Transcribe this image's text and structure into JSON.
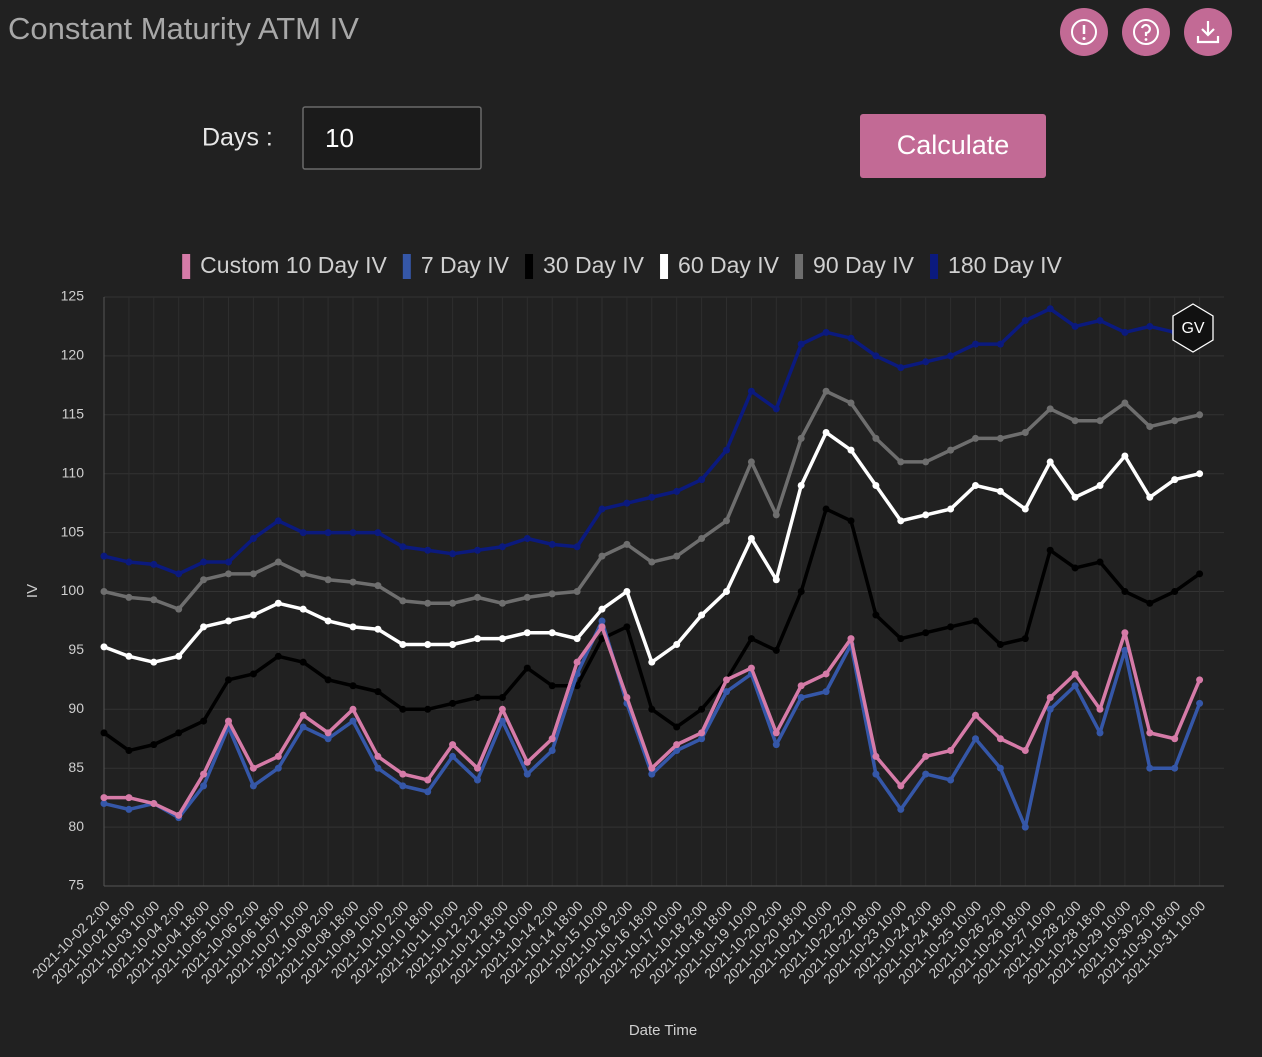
{
  "page": {
    "title": "Constant Maturity ATM IV"
  },
  "controls": {
    "days_label": "Days :",
    "days_value": "10",
    "button": "Calculate"
  },
  "chart_data": {
    "type": "line",
    "x_label": "Date Time",
    "y_label": "IV",
    "watermark": "GV",
    "categories": [
      "2021-10-02 2:00",
      "2021-10-02 18:00",
      "2021-10-03 10:00",
      "2021-10-04 2:00",
      "2021-10-04 18:00",
      "2021-10-05 10:00",
      "2021-10-06 2:00",
      "2021-10-06 18:00",
      "2021-10-07 10:00",
      "2021-10-08 2:00",
      "2021-10-08 18:00",
      "2021-10-09 10:00",
      "2021-10-10 2:00",
      "2021-10-10 18:00",
      "2021-10-11 10:00",
      "2021-10-12 2:00",
      "2021-10-12 18:00",
      "2021-10-13 10:00",
      "2021-10-14 2:00",
      "2021-10-14 18:00",
      "2021-10-15 10:00",
      "2021-10-16 2:00",
      "2021-10-16 18:00",
      "2021-10-17 10:00",
      "2021-10-18 2:00",
      "2021-10-18 18:00",
      "2021-10-19 10:00",
      "2021-10-20 2:00",
      "2021-10-20 18:00",
      "2021-10-21 10:00",
      "2021-10-22 2:00",
      "2021-10-22 18:00",
      "2021-10-23 10:00",
      "2021-10-24 2:00",
      "2021-10-24 18:00",
      "2021-10-25 10:00",
      "2021-10-26 2:00",
      "2021-10-26 18:00",
      "2021-10-27 10:00",
      "2021-10-28 2:00",
      "2021-10-28 18:00",
      "2021-10-29 10:00",
      "2021-10-30 2:00",
      "2021-10-30 18:00",
      "2021-10-31 10:00"
    ],
    "series": [
      {
        "name": "Custom 10 Day IV",
        "color": "#d67ba8",
        "values": [
          82.5,
          82.5,
          82,
          81,
          84.5,
          89,
          85,
          86,
          89.5,
          88,
          90,
          86,
          84.5,
          84,
          87,
          85,
          90,
          85.5,
          87.5,
          94,
          97,
          91,
          85,
          87,
          88,
          92.5,
          93.5,
          88,
          92,
          93,
          96,
          86,
          83.5,
          86,
          86.5,
          89.5,
          87.5,
          86.5,
          91,
          93,
          90,
          96.5,
          88,
          87.5,
          92.5
        ]
      },
      {
        "name": "7 Day IV",
        "color": "#3557a8",
        "values": [
          82,
          81.5,
          82,
          80.8,
          83.5,
          88.5,
          83.5,
          85,
          88.5,
          87.5,
          89,
          85,
          83.5,
          83,
          86,
          84,
          89,
          84.5,
          86.5,
          93,
          97.5,
          90.5,
          84.5,
          86.5,
          87.5,
          91.5,
          93,
          87,
          91,
          91.5,
          95.5,
          84.5,
          81.5,
          84.5,
          84,
          87.5,
          85,
          80,
          90,
          92,
          88,
          95,
          85,
          85,
          90.5
        ]
      },
      {
        "name": "30 Day IV",
        "color": "#000000",
        "values": [
          88,
          86.5,
          87,
          88,
          89,
          92.5,
          93,
          94.5,
          94,
          92.5,
          92,
          91.5,
          90,
          90,
          90.5,
          91,
          91,
          93.5,
          92,
          92,
          96,
          97,
          90,
          88.5,
          90,
          92.5,
          96,
          95,
          100,
          107,
          106,
          98,
          96,
          96.5,
          97,
          97.5,
          95.5,
          96,
          103.5,
          102,
          102.5,
          100,
          99,
          100,
          101.5
        ]
      },
      {
        "name": "60 Day IV",
        "color": "#ffffff",
        "values": [
          95.3,
          94.5,
          94,
          94.5,
          97,
          97.5,
          98,
          99,
          98.5,
          97.5,
          97,
          96.8,
          95.5,
          95.5,
          95.5,
          96,
          96,
          96.5,
          96.5,
          96,
          98.5,
          100,
          94,
          95.5,
          98,
          100,
          104.5,
          101,
          109,
          113.5,
          112,
          109,
          106,
          106.5,
          107,
          109,
          108.5,
          107,
          111,
          108,
          109,
          111.5,
          108,
          109.5,
          110
        ]
      },
      {
        "name": "90 Day IV",
        "color": "#6e6e6e",
        "values": [
          100,
          99.5,
          99.3,
          98.5,
          101,
          101.5,
          101.5,
          102.5,
          101.5,
          101,
          100.8,
          100.5,
          99.2,
          99,
          99,
          99.5,
          99,
          99.5,
          99.8,
          100,
          103,
          104,
          102.5,
          103,
          104.5,
          106,
          111,
          106.5,
          113,
          117,
          116,
          113,
          111,
          111,
          112,
          113,
          113,
          113.5,
          115.5,
          114.5,
          114.5,
          116,
          114,
          114.5,
          115
        ]
      },
      {
        "name": "180 Day IV",
        "color": "#0b1a7e",
        "values": [
          103,
          102.5,
          102.3,
          101.5,
          102.5,
          102.5,
          104.5,
          106,
          105,
          105,
          105,
          105,
          103.8,
          103.5,
          103.2,
          103.5,
          103.8,
          104.5,
          104,
          103.8,
          107,
          107.5,
          108,
          108.5,
          109.5,
          112,
          117,
          115.5,
          121,
          122,
          121.5,
          120,
          119,
          119.5,
          120,
          121,
          121,
          123,
          124,
          122.5,
          123,
          122,
          122.5,
          122,
          122.5
        ]
      }
    ],
    "ylim": [
      75,
      125
    ],
    "yticks": [
      75,
      80,
      85,
      90,
      95,
      100,
      105,
      110,
      115,
      120,
      125
    ],
    "grid": true
  }
}
